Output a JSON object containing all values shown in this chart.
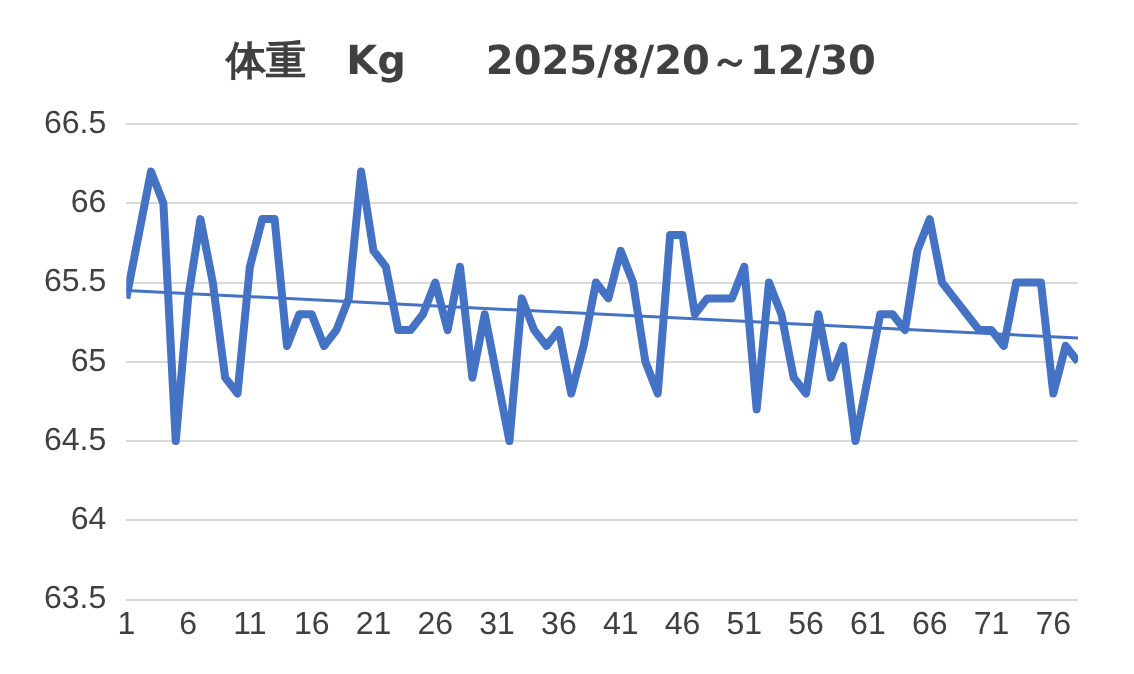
{
  "chart_data": {
    "type": "line",
    "title": "体重　Kg　　2025/8/20～12/30",
    "xlim": [
      1,
      78
    ],
    "xticks": [
      1,
      6,
      11,
      16,
      21,
      26,
      31,
      36,
      41,
      46,
      51,
      56,
      61,
      66,
      71,
      76
    ],
    "ylim": [
      63.5,
      66.5
    ],
    "yticks": [
      63.5,
      64,
      64.5,
      65,
      65.5,
      66,
      66.5
    ],
    "grid": "y",
    "legend": false,
    "marker": "none",
    "series": [
      {
        "color": "#4472c4",
        "x": [
          1,
          2,
          3,
          4,
          5,
          6,
          7,
          8,
          9,
          10,
          11,
          12,
          13,
          14,
          15,
          16,
          17,
          18,
          19,
          20,
          21,
          22,
          23,
          24,
          25,
          26,
          27,
          28,
          29,
          30,
          31,
          32,
          33,
          34,
          35,
          36,
          37,
          38,
          39,
          40,
          41,
          42,
          43,
          44,
          45,
          46,
          47,
          48,
          49,
          50,
          51,
          52,
          53,
          54,
          55,
          56,
          57,
          58,
          59,
          60,
          61,
          62,
          63,
          64,
          65,
          66,
          67,
          68,
          69,
          70,
          71,
          72,
          73,
          74,
          75,
          76,
          77,
          78
        ],
        "values": [
          65.4,
          65.8,
          66.2,
          66.0,
          64.5,
          65.4,
          65.9,
          65.5,
          64.9,
          64.8,
          65.6,
          65.9,
          65.9,
          65.1,
          65.3,
          65.3,
          65.1,
          65.2,
          65.4,
          66.2,
          65.7,
          65.6,
          65.2,
          65.2,
          65.3,
          65.5,
          65.2,
          65.6,
          64.9,
          65.3,
          64.9,
          64.5,
          65.4,
          65.2,
          65.1,
          65.2,
          64.8,
          65.1,
          65.5,
          65.4,
          65.7,
          65.5,
          65.0,
          64.8,
          65.8,
          65.8,
          65.3,
          65.4,
          65.4,
          65.4,
          65.6,
          64.7,
          65.5,
          65.3,
          64.9,
          64.8,
          65.3,
          64.9,
          65.1,
          64.5,
          64.9,
          65.3,
          65.3,
          65.2,
          65.7,
          65.9,
          65.5,
          65.4,
          65.3,
          65.2,
          65.2,
          65.1,
          65.5,
          65.5,
          65.5,
          64.8,
          65.1,
          65.0
        ]
      },
      {
        "type": "line",
        "color": "#4472c4",
        "x": [
          1,
          78
        ],
        "values": [
          65.45,
          65.15
        ]
      }
    ]
  }
}
